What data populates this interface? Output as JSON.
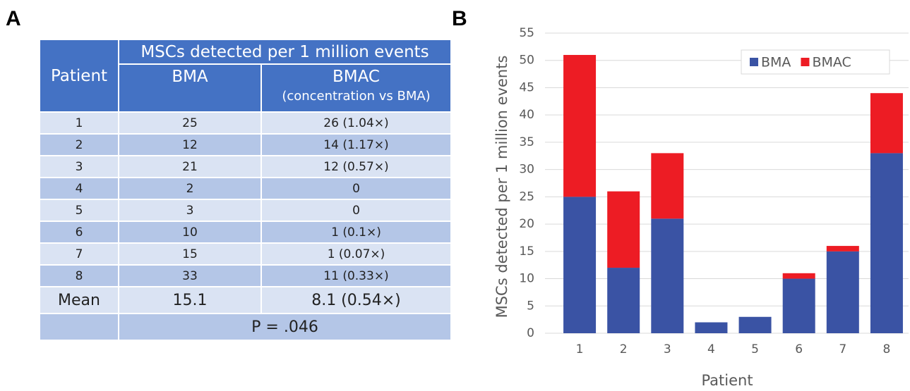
{
  "panel_labels": [
    "A",
    "B"
  ],
  "table": {
    "group_header": "MSCs detected per 1 million events",
    "columns": [
      "Patient",
      "BMA",
      "BMAC"
    ],
    "bmac_note": "(concentration vs BMA)",
    "rows": [
      [
        "1",
        "25",
        "26 (1.04×)"
      ],
      [
        "2",
        "12",
        "14 (1.17×)"
      ],
      [
        "3",
        "21",
        "12 (0.57×)"
      ],
      [
        "4",
        "2",
        "0"
      ],
      [
        "5",
        "3",
        "0"
      ],
      [
        "6",
        "10",
        "1 (0.1×)"
      ],
      [
        "7",
        "15",
        "1 (0.07×)"
      ],
      [
        "8",
        "33",
        "11 (0.33×)"
      ]
    ],
    "mean_row": [
      "Mean",
      "15.1",
      "8.1 (0.54×)"
    ],
    "p_value": "P = .046"
  },
  "chart_data": {
    "type": "stacked_bar",
    "x_label": "Patient",
    "y_label": "MSCs detected per 1 million events",
    "categories": [
      "1",
      "2",
      "3",
      "4",
      "5",
      "6",
      "7",
      "8"
    ],
    "series": [
      {
        "name": "BMA",
        "color": "#3a53a4",
        "values": [
          25,
          12,
          21,
          2,
          3,
          10,
          15,
          33
        ]
      },
      {
        "name": "BMAC",
        "color": "#ed1c24",
        "values": [
          26,
          14,
          12,
          0,
          0,
          1,
          1,
          11
        ]
      }
    ],
    "ylim": [
      0,
      55
    ],
    "yticks": [
      0,
      5,
      10,
      15,
      20,
      25,
      30,
      35,
      40,
      45,
      50,
      55
    ],
    "grid": true,
    "legend": "top-right"
  }
}
